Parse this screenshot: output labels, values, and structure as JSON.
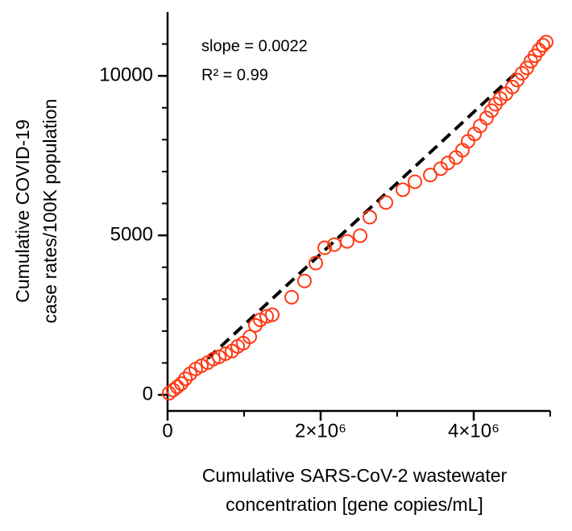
{
  "chart_data": {
    "type": "scatter",
    "x_label": [
      "Cumulative SARS-CoV-2 wastewater",
      "concentration [gene copies/mL]"
    ],
    "y_label": [
      "Cumulative COVID-19",
      "case rates/100K population"
    ],
    "annotations": [
      "slope = 0.0022",
      "R² = 0.99"
    ],
    "xlim": [
      0,
      5000000
    ],
    "ylim": [
      0,
      12000
    ],
    "xticks": [
      0,
      {
        "value": 2000000,
        "label": "2×10⁶"
      },
      {
        "value": 4000000,
        "label": "4×10⁶"
      }
    ],
    "yticks": [
      0,
      5000,
      10000
    ],
    "x_minor_ticks": [
      1000000,
      3000000,
      5000000
    ],
    "y_minor_ticks": [
      1000,
      2000,
      3000,
      4000,
      6000,
      7000,
      8000,
      9000,
      11000
    ],
    "series": [
      {
        "color": "#ff3a14",
        "marker": "open-circle",
        "x": [
          20000,
          74000,
          126000,
          179000,
          232000,
          295000,
          368000,
          442000,
          526000,
          600000,
          674000,
          758000,
          842000,
          916000,
          989000,
          1074000,
          1147000,
          1211000,
          1295000,
          1368000,
          1621000,
          1789000,
          1937000,
          2053000,
          2179000,
          2347000,
          2516000,
          2642000,
          2853000,
          3074000,
          3232000,
          3432000,
          3568000,
          3663000,
          3768000,
          3853000,
          3926000,
          4011000,
          4084000,
          4168000,
          4232000,
          4284000,
          4347000,
          4421000,
          4505000,
          4568000,
          4632000,
          4695000,
          4747000,
          4800000,
          4853000,
          4905000,
          4947000
        ],
        "y": [
          50,
          150,
          250,
          350,
          500,
          660,
          810,
          910,
          1010,
          1120,
          1190,
          1290,
          1370,
          1520,
          1620,
          1820,
          2180,
          2350,
          2460,
          2510,
          3060,
          3570,
          4130,
          4610,
          4710,
          4810,
          4990,
          5570,
          6030,
          6430,
          6680,
          6890,
          7090,
          7270,
          7440,
          7670,
          7950,
          8180,
          8430,
          8680,
          8910,
          9110,
          9290,
          9440,
          9650,
          9870,
          10080,
          10250,
          10460,
          10630,
          10810,
          10960,
          11060
        ]
      }
    ],
    "fit_line": {
      "color": "#000000",
      "dashed": true,
      "x": [
        526000,
        4547000
      ],
      "y": [
        1140,
        10080
      ]
    }
  }
}
